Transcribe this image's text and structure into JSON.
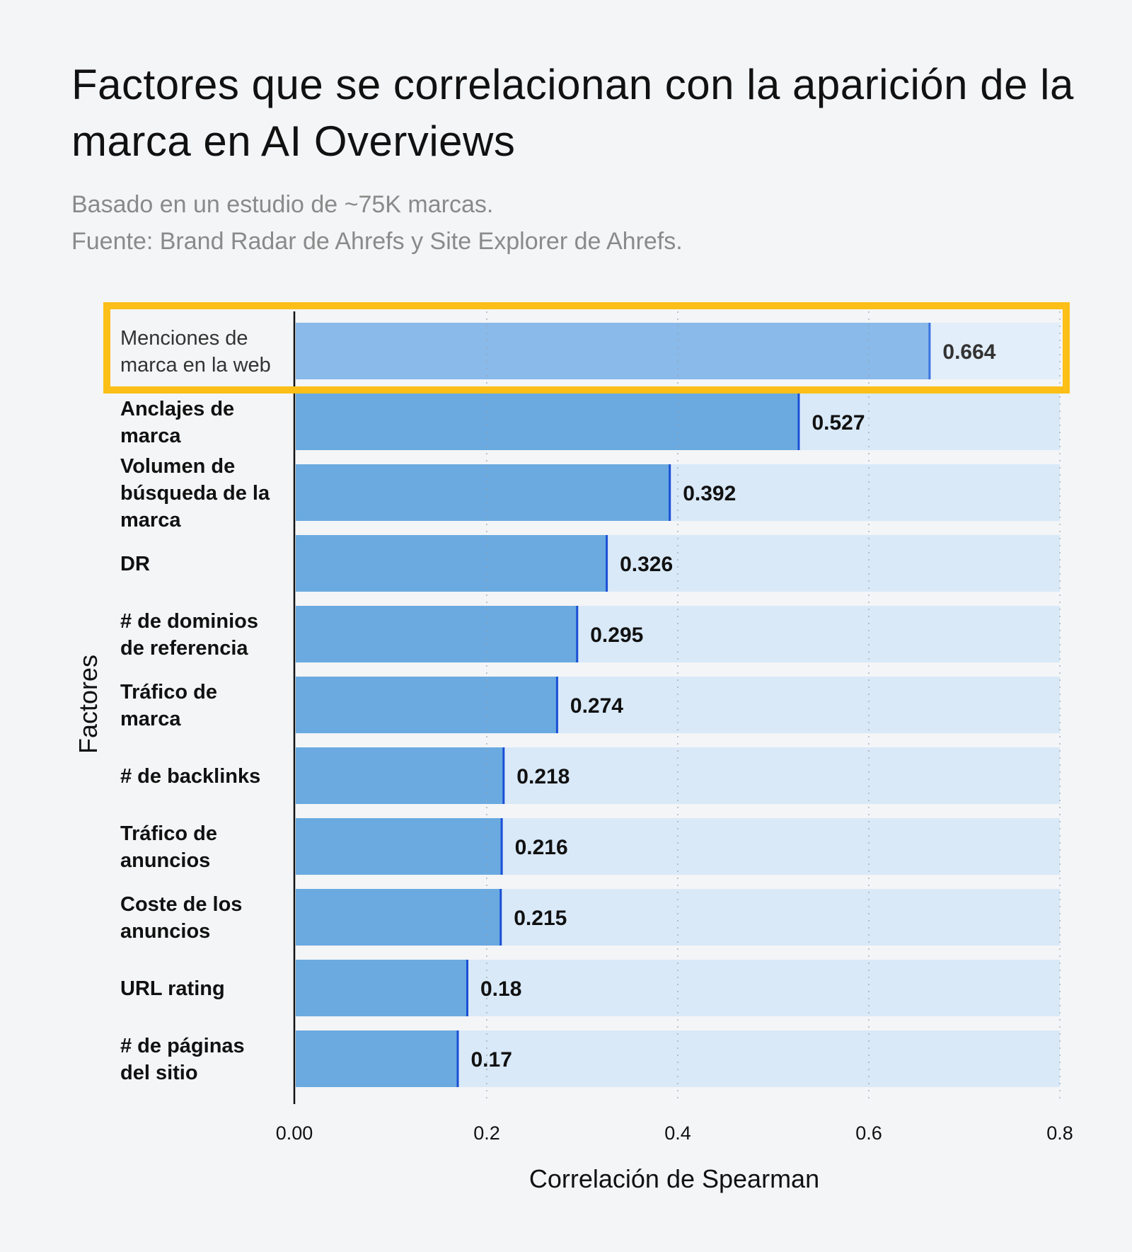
{
  "title": "Factores que se correlacionan con la aparición de la marca en AI Overviews",
  "subtitle_lines": [
    "Basado en un estudio de ~75K marcas.",
    "Fuente: Brand Radar de Ahrefs y Site Explorer de Ahrefs."
  ],
  "colors": {
    "bar": "#6aaae0",
    "bar_highlight": "#89baea",
    "track": "#d9e9f8",
    "track_highlight": "#e2eef9",
    "marker": "#1a4fd6",
    "highlight_box": "#fbbf17"
  },
  "chart_data": {
    "type": "bar",
    "orientation": "horizontal",
    "categories": [
      [
        "Menciones de",
        "marca en la web"
      ],
      [
        "Anclajes de",
        "marca"
      ],
      [
        "Volumen de",
        "búsqueda de la",
        "marca"
      ],
      [
        "DR"
      ],
      [
        "# de dominios",
        "de referencia"
      ],
      [
        "Tráfico de",
        "marca"
      ],
      [
        "# de backlinks"
      ],
      [
        "Tráfico de",
        "anuncios"
      ],
      [
        "Coste de los",
        "anuncios"
      ],
      [
        "URL rating"
      ],
      [
        "# de páginas",
        "del sitio"
      ]
    ],
    "values": [
      0.664,
      0.527,
      0.392,
      0.326,
      0.295,
      0.274,
      0.218,
      0.216,
      0.215,
      0.18,
      0.17
    ],
    "value_labels": [
      "0.664",
      "0.527",
      "0.392",
      "0.326",
      "0.295",
      "0.274",
      "0.218",
      "0.216",
      "0.215",
      "0.18",
      "0.17"
    ],
    "highlighted_index": 0,
    "xlabel": "Correlación de Spearman",
    "ylabel": "Factores",
    "xlim": [
      0,
      0.8
    ],
    "xticks": [
      0,
      0.2,
      0.4,
      0.6,
      0.8
    ],
    "xtick_labels": [
      "0.00",
      "0.2",
      "0.4",
      "0.6",
      "0.8"
    ],
    "grid": "vertical dotted"
  }
}
